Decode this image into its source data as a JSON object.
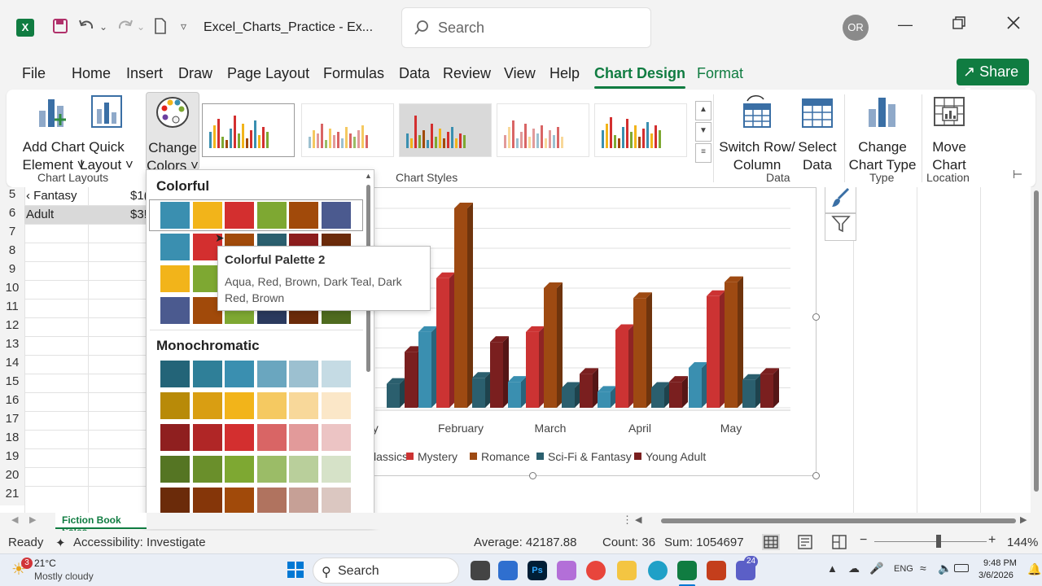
{
  "titlebar": {
    "app_icon": "X",
    "qat_icons": [
      "save-icon",
      "undo-icon",
      "redo-icon",
      "new-doc-icon",
      "customize-icon"
    ],
    "doc_title": "Excel_Charts_Practice  -  Ex...",
    "search_placeholder": "Search",
    "avatar_initials": "OR"
  },
  "menu": {
    "tabs": [
      "File",
      "Home",
      "Insert",
      "Draw",
      "Page Layout",
      "Formulas",
      "Data",
      "Review",
      "View",
      "Help",
      "Chart Design",
      "Format"
    ],
    "active_tab": "Chart Design",
    "share_label": "Share"
  },
  "ribbon": {
    "add_chart_element": [
      "Add Chart",
      "Element ˅"
    ],
    "quick_layout": [
      "Quick",
      "Layout ˅"
    ],
    "change_colors": [
      "Change",
      "Colors ˅"
    ],
    "chart_layouts_group": "Chart Layouts",
    "chart_styles_group": "Chart Styles",
    "switch_row_column": [
      "Switch Row/",
      "Column"
    ],
    "select_data": [
      "Select",
      "Data"
    ],
    "data_group": "Data",
    "change_chart_type": [
      "Change",
      "Chart Type"
    ],
    "type_group": "Type",
    "move_chart": [
      "Move",
      "Chart"
    ],
    "location_group": "Location"
  },
  "sheet": {
    "row_numbers": [
      "5",
      "6",
      "7",
      "8",
      "9",
      "10",
      "11",
      "12",
      "13",
      "14",
      "15",
      "16",
      "17",
      "18",
      "19",
      "20",
      "21"
    ],
    "row5_label": "‹ Fantasy",
    "row5_value": "$1(",
    "row6_label": "Adult",
    "row6_value": "$3!",
    "tab_name": "Fiction Book Sales"
  },
  "chart_data": {
    "type": "bar",
    "categories": [
      "January",
      "February",
      "March",
      "April",
      "May"
    ],
    "category_labels_visible": [
      "ary",
      "February",
      "March",
      "April",
      "May"
    ],
    "series": [
      {
        "name": "Classics",
        "values": [
          null,
          38,
          13,
          8,
          20
        ],
        "color": "#3a8fb0"
      },
      {
        "name": "Mystery",
        "values": [
          null,
          65,
          38,
          39,
          56
        ],
        "color": "#cc3333"
      },
      {
        "name": "Romance",
        "values": [
          null,
          100,
          60,
          55,
          63
        ],
        "color": "#9e4a12"
      },
      {
        "name": "Sci-Fi & Fantasy",
        "values": [
          12,
          15,
          10,
          10,
          14
        ],
        "color": "#2b5f6e"
      },
      {
        "name": "Young Adult",
        "values": [
          28,
          33,
          17,
          13,
          17
        ],
        "color": "#7a1f1f"
      }
    ],
    "legend_labels": [
      "lassics",
      "Mystery",
      "Romance",
      "Sci-Fi & Fantasy",
      "Young Adult"
    ],
    "legend_position": "bottom",
    "grid": true,
    "ylim": [
      0,
      100
    ]
  },
  "dropdown": {
    "colorful_heading": "Colorful",
    "monochromatic_heading": "Monochromatic",
    "colorful_rows": [
      [
        "#3a8fb0",
        "#f2b41a",
        "#d32f2f",
        "#7ea832",
        "#a14a0a",
        "#4b5a8f"
      ],
      [
        "#3a8fb0",
        "#d32f2f",
        "#a14a0a",
        "#2b5f6e",
        "#8c1d1d",
        "#6b2b0a"
      ],
      [
        "#f2b41a",
        "#7ea832",
        "#7ea832",
        "#4b5a8f",
        "#a14a0a",
        "#7ea832"
      ],
      [
        "#4b5a8f",
        "#a14a0a",
        "#7ea832",
        "#2b3a5e",
        "#6b2b0a",
        "#4f6b1f"
      ]
    ],
    "mono_rows": [
      [
        "#236478",
        "#2f7f98",
        "#3a8fb0",
        "#6aa6bf",
        "#9cc0d0",
        "#c5dbe4"
      ],
      [
        "#b88a08",
        "#d99e12",
        "#f2b41a",
        "#f5c961",
        "#f8d89a",
        "#fbe7c8"
      ],
      [
        "#8f1f1f",
        "#b02626",
        "#d32f2f",
        "#d96565",
        "#e29a9a",
        "#ecc4c4"
      ],
      [
        "#557523",
        "#6a8f2b",
        "#7ea832",
        "#9bbc67",
        "#b9cf9b",
        "#d6e2c8"
      ],
      [
        "#6b2b0a",
        "#853609",
        "#a14a0a",
        "#b0735f",
        "#c6a096",
        "#dbc7c1"
      ]
    ]
  },
  "tooltip": {
    "title": "Colorful Palette 2",
    "body": "Aqua, Red, Brown, Dark Teal, Dark Red, Brown"
  },
  "statusbar": {
    "ready": "Ready",
    "accessibility": "Accessibility: Investigate",
    "average": "Average: 42187.88",
    "count": "Count: 36",
    "sum": "Sum: 1054697",
    "zoom": "144%",
    "zoom_percent": 144
  },
  "taskbar": {
    "weather_temp": "21°C",
    "weather_desc": "Mostly cloudy",
    "weather_badge": "3",
    "search_label": "Search",
    "teams_badge": "24",
    "lang": "ENG",
    "time": "9:48 PM",
    "date": "3/6/2026"
  }
}
